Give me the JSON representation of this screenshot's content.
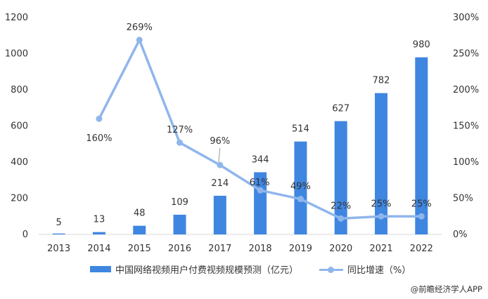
{
  "chart_data": {
    "type": "bar+line",
    "categories": [
      "2013",
      "2014",
      "2015",
      "2016",
      "2017",
      "2018",
      "2019",
      "2020",
      "2021",
      "2022"
    ],
    "series": [
      {
        "name": "中国网络视频用户付费视频规模预测（亿元）",
        "type": "bar",
        "axis": "left",
        "values": [
          5,
          13,
          48,
          109,
          214,
          344,
          514,
          627,
          782,
          980
        ],
        "labels": [
          "5",
          "13",
          "48",
          "109",
          "214",
          "344",
          "514",
          "627",
          "782",
          "980"
        ]
      },
      {
        "name": "同比增速（%）",
        "type": "line",
        "axis": "right",
        "values": [
          null,
          160,
          269,
          127,
          96,
          61,
          49,
          22,
          25,
          25
        ],
        "labels": [
          "",
          "160%",
          "269%",
          "127%",
          "96%",
          "61%",
          "49%",
          "22%",
          "25%",
          "25%"
        ]
      }
    ],
    "left_axis": {
      "min": 0,
      "max": 1200,
      "ticks": [
        "0",
        "200",
        "400",
        "600",
        "800",
        "1000",
        "1200"
      ]
    },
    "right_axis": {
      "min": 0,
      "max": 300,
      "ticks": [
        "0%",
        "50%",
        "100%",
        "150%",
        "200%",
        "250%",
        "300%"
      ]
    },
    "grid": false,
    "legend_position": "bottom",
    "colors": {
      "bar": "#3f86e0",
      "line": "#8fb6ec",
      "text": "#333333"
    }
  },
  "source": "@前瞻经济学人APP"
}
